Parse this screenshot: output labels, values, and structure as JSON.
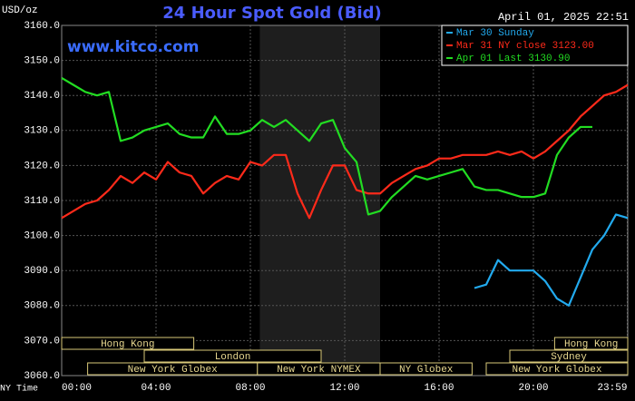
{
  "chart_data": {
    "type": "line",
    "title": "24 Hour Spot Gold (Bid)",
    "watermark": "www.kitco.com",
    "timestamp": "April 01, 2025 22:51",
    "y_label": "USD/oz",
    "x_label": "NY Time",
    "x": [
      0,
      0.5,
      1,
      1.5,
      2,
      2.5,
      3,
      3.5,
      4,
      4.5,
      5,
      5.5,
      6,
      6.5,
      7,
      7.5,
      8,
      8.5,
      9,
      9.5,
      10,
      10.5,
      11,
      11.5,
      12,
      12.5,
      13,
      13.5,
      14,
      14.5,
      15,
      15.5,
      16,
      16.5,
      17,
      17.5,
      18,
      18.5,
      19,
      19.5,
      20,
      20.5,
      21,
      21.5,
      22,
      22.5,
      23,
      23.5,
      24
    ],
    "series": [
      {
        "name": "Mar 30 Sunday",
        "color": "#22aaee",
        "values": [
          null,
          null,
          null,
          null,
          null,
          null,
          null,
          null,
          null,
          null,
          null,
          null,
          null,
          null,
          null,
          null,
          null,
          null,
          null,
          null,
          null,
          null,
          null,
          null,
          null,
          null,
          null,
          null,
          null,
          null,
          null,
          null,
          null,
          null,
          null,
          3085,
          3086,
          3093,
          3090,
          3090,
          3090,
          3087,
          3082,
          3080,
          3088,
          3096,
          3100,
          3106,
          3105
        ]
      },
      {
        "name": "Mar 31 NY close 3123.00",
        "color": "#ff2a1a",
        "values": [
          3105,
          3107,
          3109,
          3110,
          3113,
          3117,
          3115,
          3118,
          3116,
          3121,
          3118,
          3117,
          3112,
          3115,
          3117,
          3116,
          3121,
          3120,
          3123,
          3123,
          3112,
          3105,
          3113,
          3120,
          3120,
          3113,
          3112,
          3112,
          3115,
          3117,
          3119,
          3120,
          3122,
          3122,
          3123,
          3123,
          3123,
          3124,
          3123,
          3124,
          3122,
          3124,
          3127,
          3130,
          3134,
          3137,
          3140,
          3141,
          3143
        ]
      },
      {
        "name": "Apr 01 Last 3130.90",
        "color": "#22dd22",
        "values": [
          3145,
          3143,
          3141,
          3140,
          3141,
          3127,
          3128,
          3130,
          3131,
          3132,
          3129,
          3128,
          3128,
          3134,
          3129,
          3129,
          3130,
          3133,
          3131,
          3133,
          3130,
          3127,
          3132,
          3133,
          3125,
          3121,
          3106,
          3107,
          3111,
          3114,
          3117,
          3116,
          3117,
          3118,
          3119,
          3114,
          3113,
          3113,
          3112,
          3111,
          3111,
          3112,
          3123,
          3128,
          3131,
          3131,
          null,
          null,
          null
        ]
      }
    ],
    "xlim": [
      0,
      24
    ],
    "xticks": [
      {
        "value": 0,
        "label": "00:00"
      },
      {
        "value": 4,
        "label": "04:00"
      },
      {
        "value": 8,
        "label": "08:00"
      },
      {
        "value": 12,
        "label": "12:00"
      },
      {
        "value": 16,
        "label": "16:00"
      },
      {
        "value": 20,
        "label": "20:00"
      },
      {
        "value": 23.98,
        "label": "23:59"
      }
    ],
    "ylim": [
      3060,
      3160
    ],
    "yticks": [
      {
        "value": 3060,
        "label": "3060.0"
      },
      {
        "value": 3070,
        "label": "3070.0"
      },
      {
        "value": 3080,
        "label": "3080.0"
      },
      {
        "value": 3090,
        "label": "3090.0"
      },
      {
        "value": 3100,
        "label": "3100.0"
      },
      {
        "value": 3110,
        "label": "3110.0"
      },
      {
        "value": 3120,
        "label": "3120.0"
      },
      {
        "value": 3130,
        "label": "3130.0"
      },
      {
        "value": 3140,
        "label": "3140.0"
      },
      {
        "value": 3150,
        "label": "3150.0"
      },
      {
        "value": 3160,
        "label": "3160.0"
      }
    ],
    "grid": true,
    "legend": "upper right",
    "shaded_region": [
      8.4,
      13.5
    ],
    "sessions": [
      {
        "name": "Hong Kong",
        "start": 0,
        "end": 5.6,
        "row": 0
      },
      {
        "name": "Hong Kong",
        "start": 20.9,
        "end": 24,
        "row": 0
      },
      {
        "name": "London",
        "start": 3.5,
        "end": 11,
        "row": 1
      },
      {
        "name": "Sydney",
        "start": 19,
        "end": 24,
        "row": 1
      },
      {
        "name": "New York Globex",
        "start": 1.1,
        "end": 8.3,
        "row": 2
      },
      {
        "name": "New York NYMEX",
        "start": 8.3,
        "end": 13.5,
        "row": 2
      },
      {
        "name": "NY Globex",
        "start": 13.5,
        "end": 17.4,
        "row": 2
      },
      {
        "name": "New York Globex",
        "start": 18,
        "end": 24,
        "row": 2
      }
    ]
  }
}
